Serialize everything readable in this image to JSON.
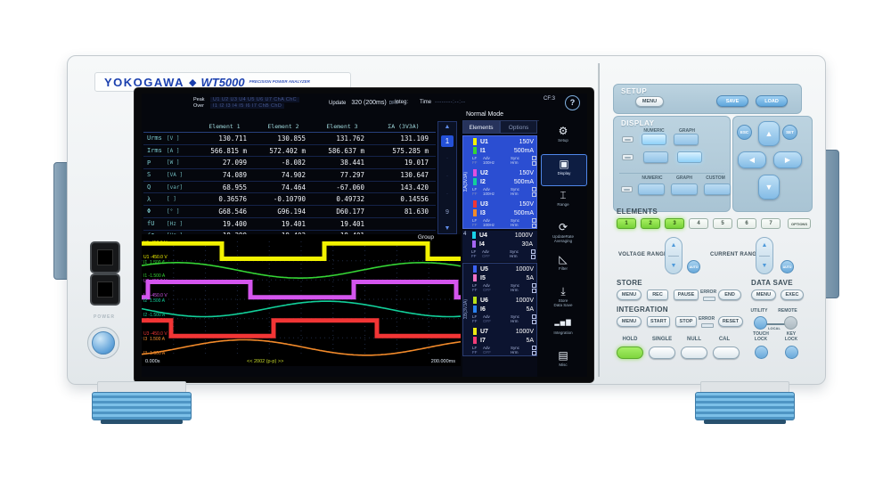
{
  "device": {
    "brand": "YOKOGAWA",
    "diamond": "◆",
    "model": "WT5000",
    "model_desc": "PRECISION POWER ANALYZER",
    "power_label": "POWER"
  },
  "screen": {
    "status_bar": {
      "peak_label": "Peak",
      "over_label": "Over",
      "peak_items": "U1 U2 U3 U4 U5 U6 U7 ChA ChC",
      "over_items": "I1 I2 I3 I4 I5 I6 I7 ChB ChD",
      "update_label": "Update",
      "update_value": "320 (200ms)",
      "update_suffix": "DF/F",
      "integ_label": "Integ:",
      "time_label": "Time",
      "time_value": "--------:--:--"
    },
    "mode": "Normal Mode",
    "cf_badge": "CF:3",
    "help": "?",
    "table": {
      "headers": [
        "Element 1",
        "Element 2",
        "Element 3",
        "ΣA (3V3A)"
      ],
      "rows": [
        {
          "name": "Urms",
          "unit": "[V  ]",
          "values": [
            "130.711",
            "130.855",
            "131.762",
            "131.109"
          ]
        },
        {
          "name": "Irms",
          "unit": "[A  ]",
          "values": [
            "566.815 m",
            "572.402 m",
            "586.637 m",
            "575.285 m"
          ]
        },
        {
          "name": "P",
          "unit": "[W  ]",
          "values": [
            "27.099",
            "-8.082",
            "38.441",
            "19.017"
          ]
        },
        {
          "name": "S",
          "unit": "[VA ]",
          "values": [
            "74.089",
            "74.902",
            "77.297",
            "130.647"
          ]
        },
        {
          "name": "Q",
          "unit": "[var]",
          "values": [
            "68.955",
            "74.464",
            "-67.060",
            "143.420"
          ]
        },
        {
          "name": "λ",
          "unit": "[   ]",
          "values": [
            "0.36576",
            "-0.10790",
            "0.49732",
            "0.14556"
          ]
        },
        {
          "name": "Φ",
          "unit": "[°  ]",
          "values": [
            "G68.546",
            "G96.194",
            "D60.177",
            "81.630"
          ]
        },
        {
          "name": "fU",
          "unit": "[Hz ]",
          "values": [
            "19.400",
            "19.401",
            "19.401",
            ""
          ]
        },
        {
          "name": "fI",
          "unit": "[Hz ]",
          "values": [
            "19.399",
            "19.403",
            "19.401",
            ""
          ]
        }
      ],
      "page_first": "1",
      "page_last": "9"
    },
    "waveform": {
      "group_label": "Group",
      "time_start": "0.000s",
      "range_text": "<< 2002 (p-p) >>",
      "time_end": "200.000ms",
      "traces": [
        {
          "ch": "U1",
          "max": "450.0 V",
          "min": "-450.0 V",
          "color": "#f2f200",
          "type": "square",
          "drop": 0.25
        },
        {
          "ch": "I1",
          "max": "1.500 A",
          "min": "-1.500 A",
          "color": "#35d435",
          "type": "sine",
          "peak": 0.88
        },
        {
          "ch": "U2",
          "max": "450.0 V",
          "min": "-450.0 V",
          "color": "#d455ee",
          "type": "square",
          "drop": 0.34
        },
        {
          "ch": "I2",
          "max": "1.500 A",
          "min": "-1.500 A",
          "color": "#12cf9a",
          "type": "sine",
          "peak": 0.58
        },
        {
          "ch": "U3",
          "max": "450.0 V",
          "min": "-450.0 V",
          "color": "#f23535",
          "type": "square",
          "drop": 0.09
        },
        {
          "ch": "I3",
          "max": "1.500 A",
          "min": "-1.500 A",
          "color": "#f28a2a",
          "type": "sine",
          "peak": 0.32
        }
      ]
    },
    "sidebar": {
      "tabs": [
        "Elements",
        "Options"
      ],
      "group_a_label": "ΣA(3V3A)",
      "group_b_label": "ΣB(3V3A)",
      "element4_num": "4",
      "elements": [
        {
          "u": "U1",
          "u_range": "150V",
          "u_color": "#f2f200",
          "i": "I1",
          "i_range": "500mA",
          "i_color": "#35d435",
          "lf": "LF",
          "ff": "FF",
          "adv": "Adv",
          "freq": "100Hz",
          "sync": "Sync",
          "hrm": "Hrm"
        },
        {
          "u": "U2",
          "u_range": "150V",
          "u_color": "#e04fe0",
          "i": "I2",
          "i_range": "500mA",
          "i_color": "#12cf9a",
          "lf": "LF",
          "ff": "FF",
          "adv": "Adv",
          "freq": "100Hz",
          "sync": "Sync",
          "hrm": "Hrm"
        },
        {
          "u": "U3",
          "u_range": "150V",
          "u_color": "#f23535",
          "i": "I3",
          "i_range": "500mA",
          "i_color": "#f28a2a",
          "lf": "LF",
          "ff": "FF",
          "adv": "Adv",
          "freq": "100Hz",
          "sync": "Sync",
          "hrm": "Hrm"
        },
        {
          "u": "U4",
          "u_range": "1000V",
          "u_color": "#19d2e8",
          "i": "I4",
          "i_range": "30A",
          "i_color": "#a566f2",
          "lf": "LF",
          "ff": "FF",
          "adv": "Adv",
          "freq": "OFF",
          "sync": "Sync",
          "hrm": "Hrm"
        },
        {
          "u": "U5",
          "u_range": "1000V",
          "u_color": "#3b62f2",
          "i": "I5",
          "i_range": "5A",
          "i_color": "#f272c4",
          "lf": "LF",
          "ff": "FF",
          "adv": "Adv",
          "freq": "OFF",
          "sync": "Sync",
          "hrm": "Hrm"
        },
        {
          "u": "U6",
          "u_range": "1000V",
          "u_color": "#b8e019",
          "i": "I6",
          "i_range": "5A",
          "i_color": "#2b82f2",
          "lf": "LF",
          "ff": "FF",
          "adv": "Adv",
          "freq": "OFF",
          "sync": "Sync",
          "hrm": "Hrm"
        },
        {
          "u": "U7",
          "u_range": "1000V",
          "u_color": "#eaea12",
          "i": "I7",
          "i_range": "5A",
          "i_color": "#f23d77",
          "lf": "LF",
          "ff": "FF",
          "adv": "Adv",
          "freq": "OFF",
          "sync": "Sync",
          "hrm": "Hrm"
        }
      ]
    },
    "menu_rail": [
      {
        "icon": "gear-icon",
        "label": "Setup",
        "active": false
      },
      {
        "icon": "display-icon",
        "label": "Display",
        "active": true
      },
      {
        "icon": "range-icon",
        "label": "Range",
        "active": false
      },
      {
        "icon": "update-rate-icon",
        "label": "UpdateRate\nAveraging",
        "active": false
      },
      {
        "icon": "filter-icon",
        "label": "Filter",
        "active": false
      },
      {
        "icon": "store-icon",
        "label": "Store\nData Save",
        "active": false
      },
      {
        "icon": "integration-icon",
        "label": "Integration",
        "active": false
      },
      {
        "icon": "misc-icon",
        "label": "Misc",
        "active": false
      }
    ]
  },
  "panel": {
    "setup": {
      "title": "SETUP",
      "menu": "MENU",
      "save": "SAVE",
      "load": "LOAD"
    },
    "display": {
      "title": "DISPLAY",
      "numeric1": "NUMERIC",
      "graph1": "GRAPH",
      "numeric2": "NUMERIC",
      "graph2": "GRAPH",
      "custom": "CUSTOM"
    },
    "nav": {
      "esc": "ESC",
      "set": "SET",
      "up": "▲",
      "down": "▼",
      "left": "◀",
      "right": "▶"
    },
    "elements": {
      "title": "ELEMENTS",
      "buttons": [
        "1",
        "2",
        "3",
        "4",
        "5",
        "6",
        "7"
      ],
      "options_label": "OPTIONS"
    },
    "ranges": {
      "voltage_label": "VOLTAGE RANGE",
      "current_label": "CURRENT RANGE",
      "auto_label": "AUTO"
    },
    "store": {
      "title": "STORE",
      "menu": "MENU",
      "rec": "REC",
      "pause": "PAUSE",
      "error": "ERROR",
      "end": "END"
    },
    "data_save": {
      "title": "DATA SAVE",
      "menu": "MENU",
      "exec": "EXEC"
    },
    "integration": {
      "title": "INTEGRATION",
      "menu": "MENU",
      "start": "START",
      "stop": "STOP",
      "error": "ERROR",
      "reset": "RESET"
    },
    "remote": {
      "utility": "UTILITY",
      "remote": "REMOTE",
      "local": "LOCAL"
    },
    "bottom": {
      "hold": "HOLD",
      "single": "SINGLE",
      "null": "NULL",
      "cal": "CAL",
      "touch_l1": "TOUCH",
      "touch_l2": "LOCK",
      "key_l1": "KEY",
      "key_l2": "LOCK"
    }
  }
}
